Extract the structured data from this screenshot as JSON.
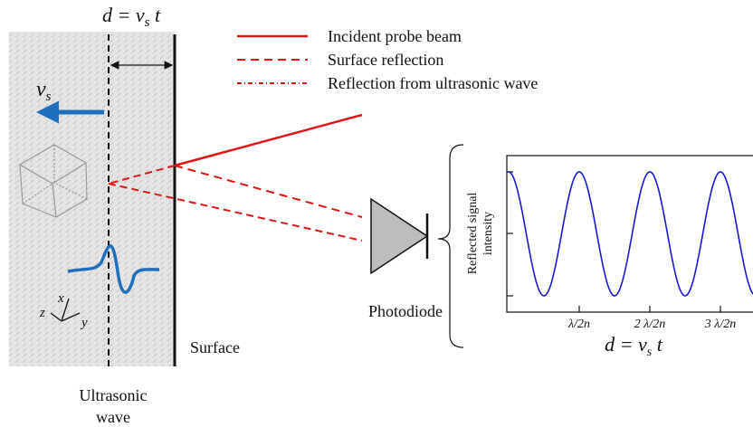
{
  "diagram": {
    "top_label": {
      "main": "d = v",
      "sub": "s",
      "tail": " t"
    },
    "legend": [
      "Incident probe beam",
      "Surface reflection",
      "Reflection from ultrasonic wave"
    ],
    "velocity": {
      "main": "v",
      "sub": "s"
    },
    "axes": {
      "x": "x",
      "y": "y",
      "z": "z"
    },
    "medium_label": [
      "Ultrasonic",
      "wave"
    ],
    "surface_label": "Surface",
    "detector_label": "Photodiode",
    "plot": {
      "ylabel": [
        "Reflected signal",
        "intensity"
      ],
      "xticks": [
        "λ/2n",
        "2 λ/2n",
        "3 λ/2n"
      ],
      "xlabel": {
        "main": "d = v",
        "sub": "s",
        "tail": " t"
      }
    }
  }
}
